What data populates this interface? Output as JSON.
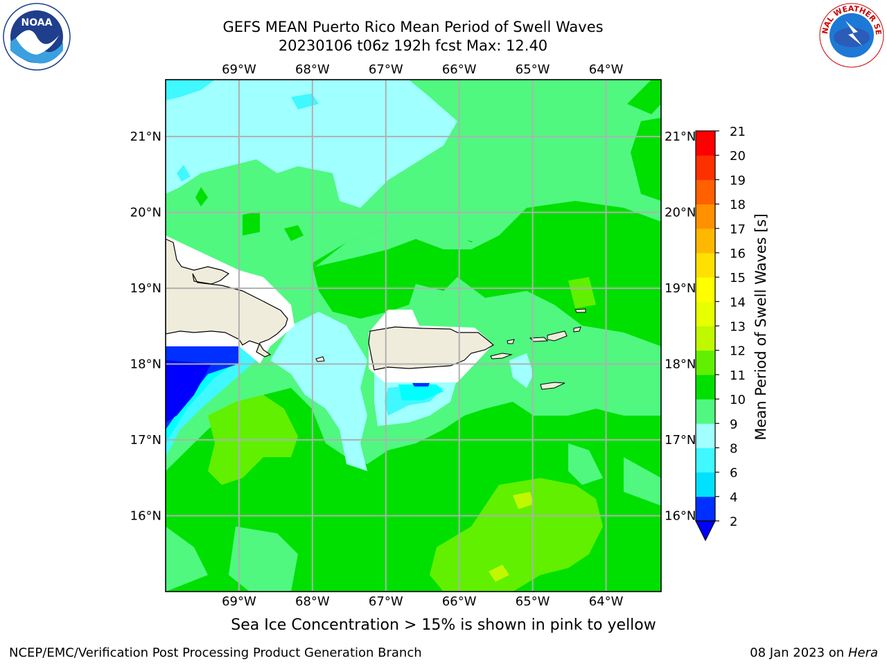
{
  "title_line1": "GEFS MEAN Puerto Rico Mean Period of Swell Waves",
  "title_line2": "20230106 t06z 192h fcst   Max: 12.40",
  "subcaption": "Sea Ice Concentration > 15% is shown in pink to yellow",
  "footer_left": "NCEP/EMC/Verification Post Processing Product Generation Branch",
  "footer_date": "08 Jan 2023 on ",
  "footer_machine": "Hera",
  "logo_left": {
    "icon": "noaa-logo-icon",
    "text": "NOAA"
  },
  "logo_right": {
    "icon": "nws-logo-icon",
    "text": "NATIONAL WEATHER SERVICE"
  },
  "map": {
    "lon_range": [
      -70.0,
      -63.25
    ],
    "lat_range": [
      15.0,
      21.75
    ],
    "lon_labels": [
      "69°W",
      "68°W",
      "67°W",
      "66°W",
      "65°W",
      "64°W"
    ],
    "lat_labels": [
      "21°N",
      "20°N",
      "19°N",
      "18°N",
      "17°N",
      "16°N"
    ]
  },
  "colorbar": {
    "label": "Mean Period of Swell Waves [s]",
    "ticks": [
      "2",
      "4",
      "6",
      "8",
      "9",
      "10",
      "11",
      "12",
      "13",
      "14",
      "15",
      "16",
      "17",
      "18",
      "19",
      "20",
      "21"
    ],
    "colors": [
      "#0030ff",
      "#00e0ff",
      "#40f8ff",
      "#a0ffff",
      "#50f880",
      "#00e000",
      "#60f000",
      "#c0f800",
      "#e8ff00",
      "#ffff00",
      "#ffe000",
      "#ffb800",
      "#ff9000",
      "#ff6000",
      "#ff3000",
      "#ff0000"
    ],
    "under_color": "#0000ff"
  }
}
